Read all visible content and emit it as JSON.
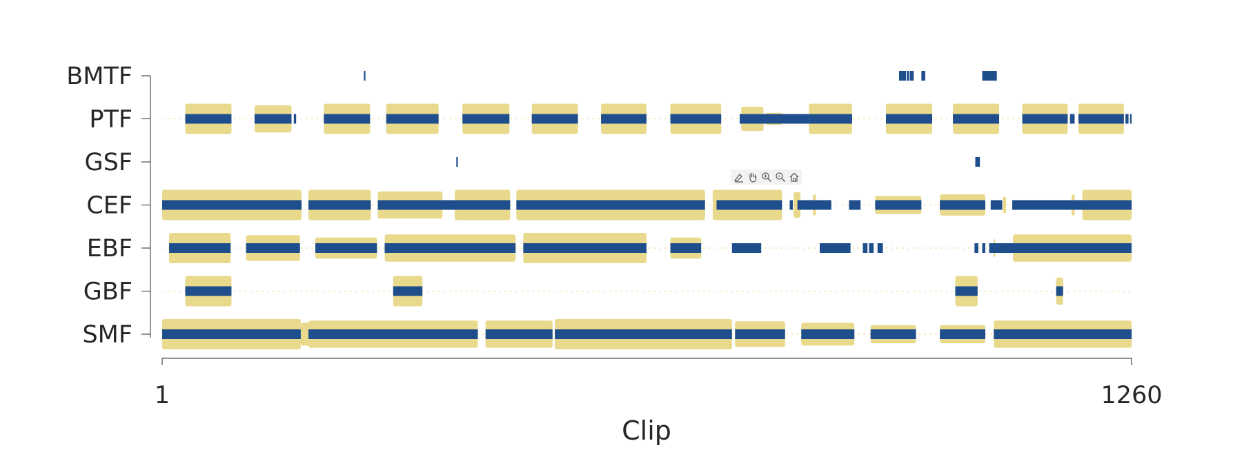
{
  "chart_data": {
    "type": "timeline",
    "xlabel": "Clip",
    "xlim": [
      1,
      1260
    ],
    "xticks": [
      "1",
      "1260"
    ],
    "rows": [
      "BMTF",
      "PTF",
      "GSF",
      "CEF",
      "EBF",
      "GBF",
      "SMF"
    ],
    "colors": {
      "activity_bar": "#1f4e8c",
      "envelope": "#e8d98c",
      "axis": "#262626"
    },
    "tracks": {
      "BMTF": {
        "bars": [
          [
            263,
            265
          ],
          [
            958,
            967
          ],
          [
            968,
            971
          ],
          [
            972,
            977
          ],
          [
            987,
            992
          ],
          [
            1066,
            1085
          ]
        ],
        "envelope": []
      },
      "PTF": {
        "bars": [
          [
            31,
            91
          ],
          [
            121,
            169
          ],
          [
            172,
            175
          ],
          [
            211,
            271
          ],
          [
            292,
            360
          ],
          [
            391,
            452
          ],
          [
            481,
            541
          ],
          [
            571,
            630
          ],
          [
            661,
            727
          ],
          [
            753,
            782
          ],
          [
            784,
            787
          ],
          [
            793,
            794
          ],
          [
            805,
            807
          ],
          [
            753,
            785
          ],
          [
            751,
            811
          ],
          [
            841,
            810
          ],
          [
            841,
            897
          ],
          [
            941,
            1001
          ],
          [
            1028,
            1088
          ],
          [
            1118,
            1177
          ],
          [
            1180,
            1186
          ],
          [
            1191,
            1250
          ],
          [
            1252,
            1256
          ],
          [
            1258,
            1260
          ]
        ],
        "envelope": [
          [
            31,
            91,
            1.0
          ],
          [
            121,
            169,
            0.9
          ],
          [
            211,
            271,
            1.0
          ],
          [
            292,
            360,
            1.0
          ],
          [
            391,
            452,
            1.0
          ],
          [
            481,
            541,
            1.0
          ],
          [
            571,
            630,
            1.0
          ],
          [
            661,
            727,
            1.0
          ],
          [
            753,
            782,
            0.8
          ],
          [
            784,
            807,
            0.4
          ],
          [
            841,
            897,
            1.0
          ],
          [
            941,
            1001,
            1.0
          ],
          [
            1028,
            1088,
            1.0
          ],
          [
            1118,
            1177,
            1.0
          ],
          [
            1191,
            1250,
            1.0
          ]
        ]
      },
      "GSF": {
        "bars": [
          [
            383,
            385
          ],
          [
            1057,
            1063
          ]
        ],
        "envelope": []
      },
      "CEF": {
        "bars": [
          [
            1,
            182
          ],
          [
            191,
            272
          ],
          [
            281,
            453
          ],
          [
            461,
            706
          ],
          [
            721,
            806
          ],
          [
            816,
            820
          ],
          [
            826,
            870
          ],
          [
            893,
            908
          ],
          [
            927,
            987
          ],
          [
            1011,
            1070
          ],
          [
            1077,
            1092
          ],
          [
            1105,
            1260
          ]
        ],
        "envelope": [
          [
            1,
            182,
            1.0
          ],
          [
            191,
            272,
            1.0
          ],
          [
            281,
            365,
            0.9
          ],
          [
            381,
            453,
            1.0
          ],
          [
            461,
            706,
            1.0
          ],
          [
            716,
            806,
            1.0
          ],
          [
            821,
            830,
            0.85
          ],
          [
            846,
            850,
            0.7
          ],
          [
            927,
            987,
            0.6
          ],
          [
            1011,
            1070,
            0.7
          ],
          [
            1093,
            1097,
            0.55
          ],
          [
            1182,
            1186,
            0.7
          ],
          [
            1196,
            1260,
            1.0
          ]
        ]
      },
      "EBF": {
        "bars": [
          [
            10,
            90
          ],
          [
            110,
            180
          ],
          [
            200,
            280
          ],
          [
            290,
            460
          ],
          [
            470,
            630
          ],
          [
            661,
            701
          ],
          [
            741,
            779
          ],
          [
            855,
            895
          ],
          [
            911,
            917
          ],
          [
            919,
            925
          ],
          [
            930,
            937
          ],
          [
            1056,
            1061
          ],
          [
            1066,
            1070
          ],
          [
            1075,
            1260
          ]
        ],
        "envelope": [
          [
            10,
            90,
            1.0
          ],
          [
            110,
            180,
            0.85
          ],
          [
            200,
            280,
            0.7
          ],
          [
            290,
            460,
            0.9
          ],
          [
            470,
            630,
            1.0
          ],
          [
            661,
            701,
            0.7
          ],
          [
            1081,
            1083,
            0.6
          ],
          [
            1106,
            1260,
            0.9
          ]
        ]
      },
      "GBF": {
        "bars": [
          [
            31,
            91
          ],
          [
            301,
            339
          ],
          [
            1031,
            1060
          ],
          [
            1162,
            1171
          ]
        ],
        "envelope": [
          [
            31,
            91,
            1.0
          ],
          [
            301,
            339,
            1.0
          ],
          [
            1031,
            1060,
            1.0
          ],
          [
            1162,
            1171,
            0.9
          ]
        ]
      },
      "SMF": {
        "bars": [
          [
            1,
            181
          ],
          [
            191,
            411
          ],
          [
            421,
            508
          ],
          [
            511,
            741
          ],
          [
            745,
            810
          ],
          [
            831,
            900
          ],
          [
            921,
            980
          ],
          [
            1011,
            1070
          ],
          [
            1081,
            1260
          ]
        ],
        "envelope": [
          [
            1,
            181,
            1.0
          ],
          [
            181,
            270,
            0.75
          ],
          [
            191,
            411,
            0.9
          ],
          [
            421,
            508,
            0.9
          ],
          [
            511,
            741,
            1.0
          ],
          [
            745,
            810,
            0.85
          ],
          [
            831,
            900,
            0.75
          ],
          [
            921,
            980,
            0.6
          ],
          [
            1011,
            1070,
            0.6
          ],
          [
            1081,
            1260,
            0.9
          ]
        ]
      }
    }
  },
  "toolbar": {
    "buttons": [
      "brush-icon",
      "pan-icon",
      "zoom-in-icon",
      "zoom-out-icon",
      "home-icon"
    ]
  }
}
